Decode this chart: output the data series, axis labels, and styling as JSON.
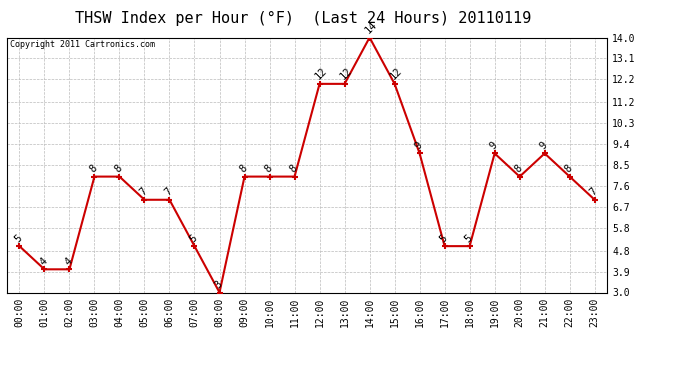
{
  "title": "THSW Index per Hour (°F)  (Last 24 Hours) 20110119",
  "copyright": "Copyright 2011 Cartronics.com",
  "hours": [
    "00:00",
    "01:00",
    "02:00",
    "03:00",
    "04:00",
    "05:00",
    "06:00",
    "07:00",
    "08:00",
    "09:00",
    "10:00",
    "11:00",
    "12:00",
    "13:00",
    "14:00",
    "15:00",
    "16:00",
    "17:00",
    "18:00",
    "19:00",
    "20:00",
    "21:00",
    "22:00",
    "23:00"
  ],
  "values": [
    5,
    4,
    4,
    8,
    8,
    7,
    7,
    5,
    3,
    8,
    8,
    8,
    12,
    12,
    14,
    12,
    9,
    5,
    5,
    9,
    8,
    9,
    8,
    7
  ],
  "ylim": [
    3.0,
    14.0
  ],
  "yticks": [
    3.0,
    3.9,
    4.8,
    5.8,
    6.7,
    7.6,
    8.5,
    9.4,
    10.3,
    11.2,
    12.2,
    13.1,
    14.0
  ],
  "line_color": "#cc0000",
  "marker_color": "#cc0000",
  "bg_color": "#ffffff",
  "grid_color": "#bbbbbb",
  "title_fontsize": 11,
  "tick_fontsize": 7,
  "annotation_fontsize": 7.5,
  "copyright_fontsize": 6
}
